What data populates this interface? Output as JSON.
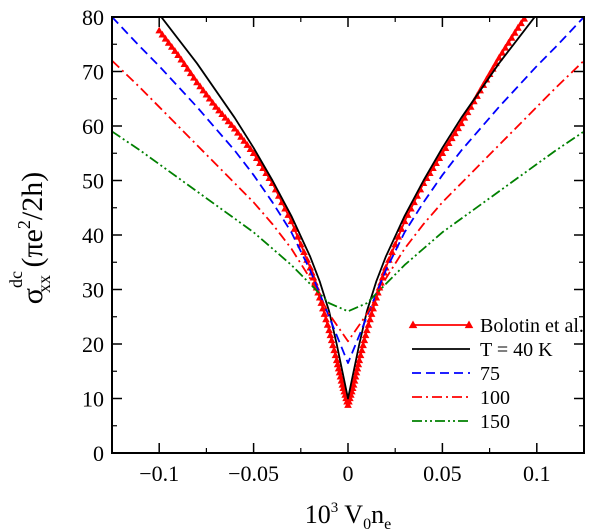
{
  "chart_data": {
    "type": "line",
    "xlabel": {
      "prefix": "10",
      "prefix_sup": "3",
      "main": " V",
      "sub1": "0",
      "mid": "n",
      "sub2": "e"
    },
    "ylabel": {
      "sigma": "σ",
      "sup": "dc",
      "sub": "xx",
      "rest1": " (πe",
      "rest_sup": "2",
      "rest2": "/2h)"
    },
    "xlim": [
      -0.125,
      0.125
    ],
    "ylim": [
      0,
      80
    ],
    "x_ticks": [
      -0.1,
      -0.05,
      0,
      0.05,
      0.1
    ],
    "x_tick_labels": [
      "−0.1",
      "−0.05",
      "0",
      "0.05",
      "0.1"
    ],
    "y_ticks": [
      0,
      10,
      20,
      30,
      40,
      50,
      60,
      70,
      80
    ],
    "y_tick_labels": [
      "0",
      "10",
      "20",
      "30",
      "40",
      "50",
      "60",
      "70",
      "80"
    ],
    "grid": false,
    "legend_position": "bottom-right",
    "series": [
      {
        "name": "Bolotin et al.",
        "color": "#ff0000",
        "style": "solid-triangles",
        "x": [
          -0.1,
          -0.09,
          -0.08,
          -0.07,
          -0.06,
          -0.05,
          -0.04,
          -0.03,
          -0.02,
          -0.015,
          -0.01,
          -0.006,
          -0.003,
          0,
          0.003,
          0.006,
          0.01,
          0.015,
          0.02,
          0.03,
          0.04,
          0.05,
          0.06,
          0.07,
          0.08,
          0.09,
          0.1
        ],
        "y": [
          77.5,
          73,
          68,
          63.5,
          59.5,
          55,
          49.5,
          42.5,
          34,
          28.5,
          22.5,
          17,
          12.5,
          8.8,
          12.5,
          17,
          22.5,
          28.5,
          34,
          42.5,
          49.5,
          55,
          60.5,
          66.5,
          72.5,
          78,
          83
        ]
      },
      {
        "name": "T = 40 K",
        "color": "#000000",
        "style": "solid",
        "x": [
          -0.125,
          -0.11,
          -0.1,
          -0.09,
          -0.08,
          -0.07,
          -0.06,
          -0.05,
          -0.04,
          -0.03,
          -0.02,
          -0.015,
          -0.01,
          -0.006,
          -0.003,
          0,
          0.003,
          0.006,
          0.01,
          0.015,
          0.02,
          0.03,
          0.04,
          0.05,
          0.06,
          0.07,
          0.08,
          0.09,
          0.1,
          0.11,
          0.125
        ],
        "y": [
          91,
          84.5,
          80.5,
          76,
          71.5,
          66.5,
          61.5,
          56,
          50,
          43.5,
          36,
          31.5,
          26,
          20,
          15,
          10,
          15,
          20,
          26,
          31.5,
          36,
          43.5,
          50,
          56,
          61.5,
          66.5,
          71.5,
          76,
          80.5,
          84.5,
          91
        ]
      },
      {
        "name": "75",
        "color": "#0000ff",
        "style": "dashed",
        "x": [
          -0.125,
          -0.11,
          -0.1,
          -0.08,
          -0.06,
          -0.05,
          -0.04,
          -0.03,
          -0.02,
          -0.01,
          0,
          0.01,
          0.02,
          0.03,
          0.04,
          0.05,
          0.06,
          0.08,
          0.1,
          0.11,
          0.125
        ],
        "y": [
          80,
          74.5,
          71,
          63.5,
          55.5,
          51,
          46,
          40.5,
          33.5,
          25,
          16.5,
          25,
          33.5,
          40.5,
          46,
          51,
          55.5,
          63.5,
          71,
          74.5,
          80
        ]
      },
      {
        "name": "100",
        "color": "#ff0000",
        "style": "dash-dot",
        "x": [
          -0.125,
          -0.11,
          -0.1,
          -0.08,
          -0.06,
          -0.05,
          -0.04,
          -0.03,
          -0.02,
          -0.01,
          0,
          0.01,
          0.02,
          0.03,
          0.04,
          0.05,
          0.06,
          0.08,
          0.1,
          0.11,
          0.125
        ],
        "y": [
          72,
          67,
          63.5,
          56.5,
          49.5,
          46,
          42,
          37.5,
          32,
          25.5,
          20.5,
          25.5,
          32,
          37.5,
          42,
          46,
          49.5,
          56.5,
          63.5,
          67,
          72
        ]
      },
      {
        "name": "150",
        "color": "#008000",
        "style": "dash-dot-dot",
        "x": [
          -0.125,
          -0.11,
          -0.1,
          -0.08,
          -0.06,
          -0.05,
          -0.04,
          -0.03,
          -0.02,
          -0.01,
          0,
          0.01,
          0.02,
          0.03,
          0.04,
          0.05,
          0.06,
          0.08,
          0.1,
          0.11,
          0.125
        ],
        "y": [
          59,
          55.5,
          53,
          48,
          43,
          40.5,
          37.5,
          34.5,
          31,
          27.5,
          26,
          27.5,
          31,
          34.5,
          37.5,
          40.5,
          43,
          48,
          53,
          55.5,
          59
        ]
      }
    ]
  }
}
